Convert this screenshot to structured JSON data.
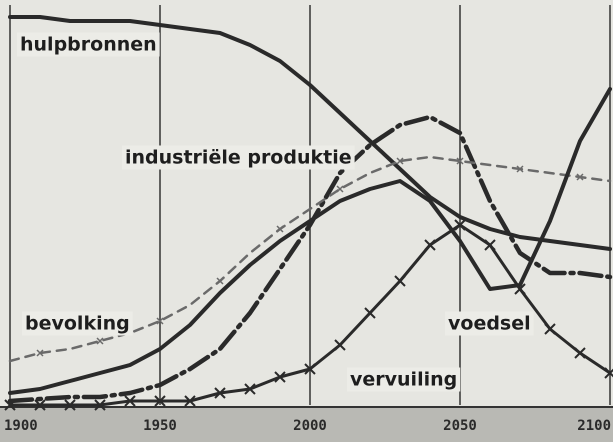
{
  "chart_data": {
    "type": "line",
    "x": [
      1900,
      1910,
      1920,
      1930,
      1940,
      1950,
      1960,
      1970,
      1980,
      1990,
      2000,
      2010,
      2020,
      2030,
      2040,
      2050,
      2060,
      2070,
      2080,
      2090,
      2100
    ],
    "xlim": [
      1900,
      2100
    ],
    "xticks": [
      1900,
      1950,
      2000,
      2050,
      2100
    ],
    "ylim": [
      0,
      100
    ],
    "grid": true,
    "series": [
      {
        "name": "hulpbronnen",
        "color": "#2a2a2a",
        "style": "solid",
        "values": [
          97,
          97,
          96,
          96,
          96,
          95,
          94,
          93,
          90,
          86,
          80,
          73,
          66,
          59,
          52,
          47,
          44,
          42,
          41,
          40,
          39
        ]
      },
      {
        "name": "industriële produktie",
        "color": "#2a2a2a",
        "style": "dash-dot",
        "values": [
          1,
          1.5,
          2,
          2,
          3,
          5,
          9,
          14,
          23,
          34,
          45,
          58,
          65,
          70,
          72,
          68,
          51,
          38,
          33,
          33,
          32
        ]
      },
      {
        "name": "bevolking",
        "color": "#6a6a6a",
        "style": "dashed",
        "values": [
          11,
          13,
          14,
          16,
          18,
          21,
          25,
          31,
          38,
          44,
          49,
          54,
          58,
          61,
          62,
          61,
          60,
          59,
          58,
          57,
          56
        ]
      },
      {
        "name": "voedsel",
        "color": "#2a2a2a",
        "style": "solid",
        "values": [
          3,
          4,
          6,
          8,
          10,
          14,
          20,
          28,
          35,
          41,
          46,
          51,
          54,
          56,
          51,
          41,
          29,
          30,
          46,
          66,
          79
        ]
      },
      {
        "name": "vervuiling",
        "color": "#2a2a2a",
        "style": "cross",
        "values": [
          0,
          0,
          0,
          0,
          1,
          1,
          1,
          3,
          4,
          7,
          9,
          15,
          23,
          31,
          40,
          45,
          40,
          29,
          19,
          13,
          8
        ]
      }
    ]
  }
}
